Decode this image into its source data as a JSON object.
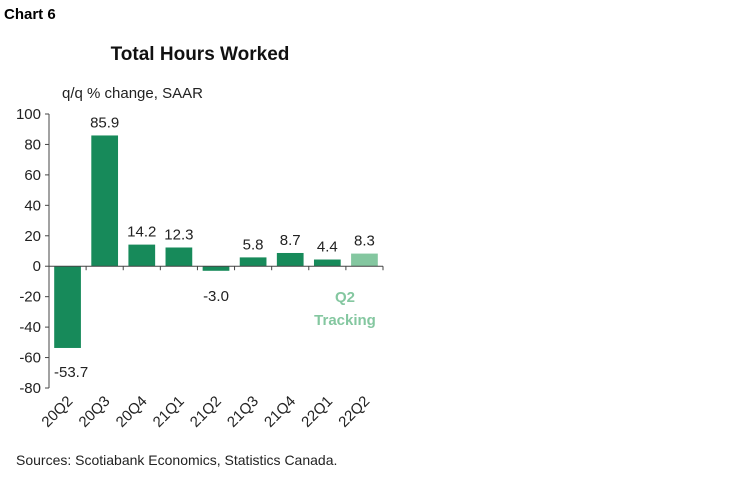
{
  "header": {
    "chart_label": "Chart 6",
    "title": "Total Hours Worked",
    "unit_label": "q/q % change, SAAR"
  },
  "footer": {
    "source": "Sources: Scotiabank Economics, Statistics Canada."
  },
  "annotation": {
    "line1": "Q2",
    "line2": "Tracking"
  },
  "colors": {
    "bar": "#178a5a",
    "bar_tracking": "#84c7a0",
    "annotation": "#84c7a0",
    "axis": "#444444"
  },
  "chart_data": {
    "type": "bar",
    "title": "Total Hours Worked",
    "ylabel": "q/q % change, SAAR",
    "categories": [
      "20Q2",
      "20Q3",
      "20Q4",
      "21Q1",
      "21Q2",
      "21Q3",
      "21Q4",
      "22Q1",
      "22Q2"
    ],
    "values": [
      -53.7,
      85.9,
      14.2,
      12.3,
      -3.0,
      5.8,
      8.7,
      4.4,
      8.3
    ],
    "value_labels": [
      "-53.7",
      "85.9",
      "14.2",
      "12.3",
      "-3.0",
      "5.8",
      "8.7",
      "4.4",
      "8.3"
    ],
    "highlight_index": 8,
    "ylim": [
      -80,
      100
    ],
    "yticks": [
      100,
      80,
      60,
      40,
      20,
      0,
      -20,
      -40,
      -60,
      -80
    ],
    "grid": false,
    "legend": "none"
  }
}
